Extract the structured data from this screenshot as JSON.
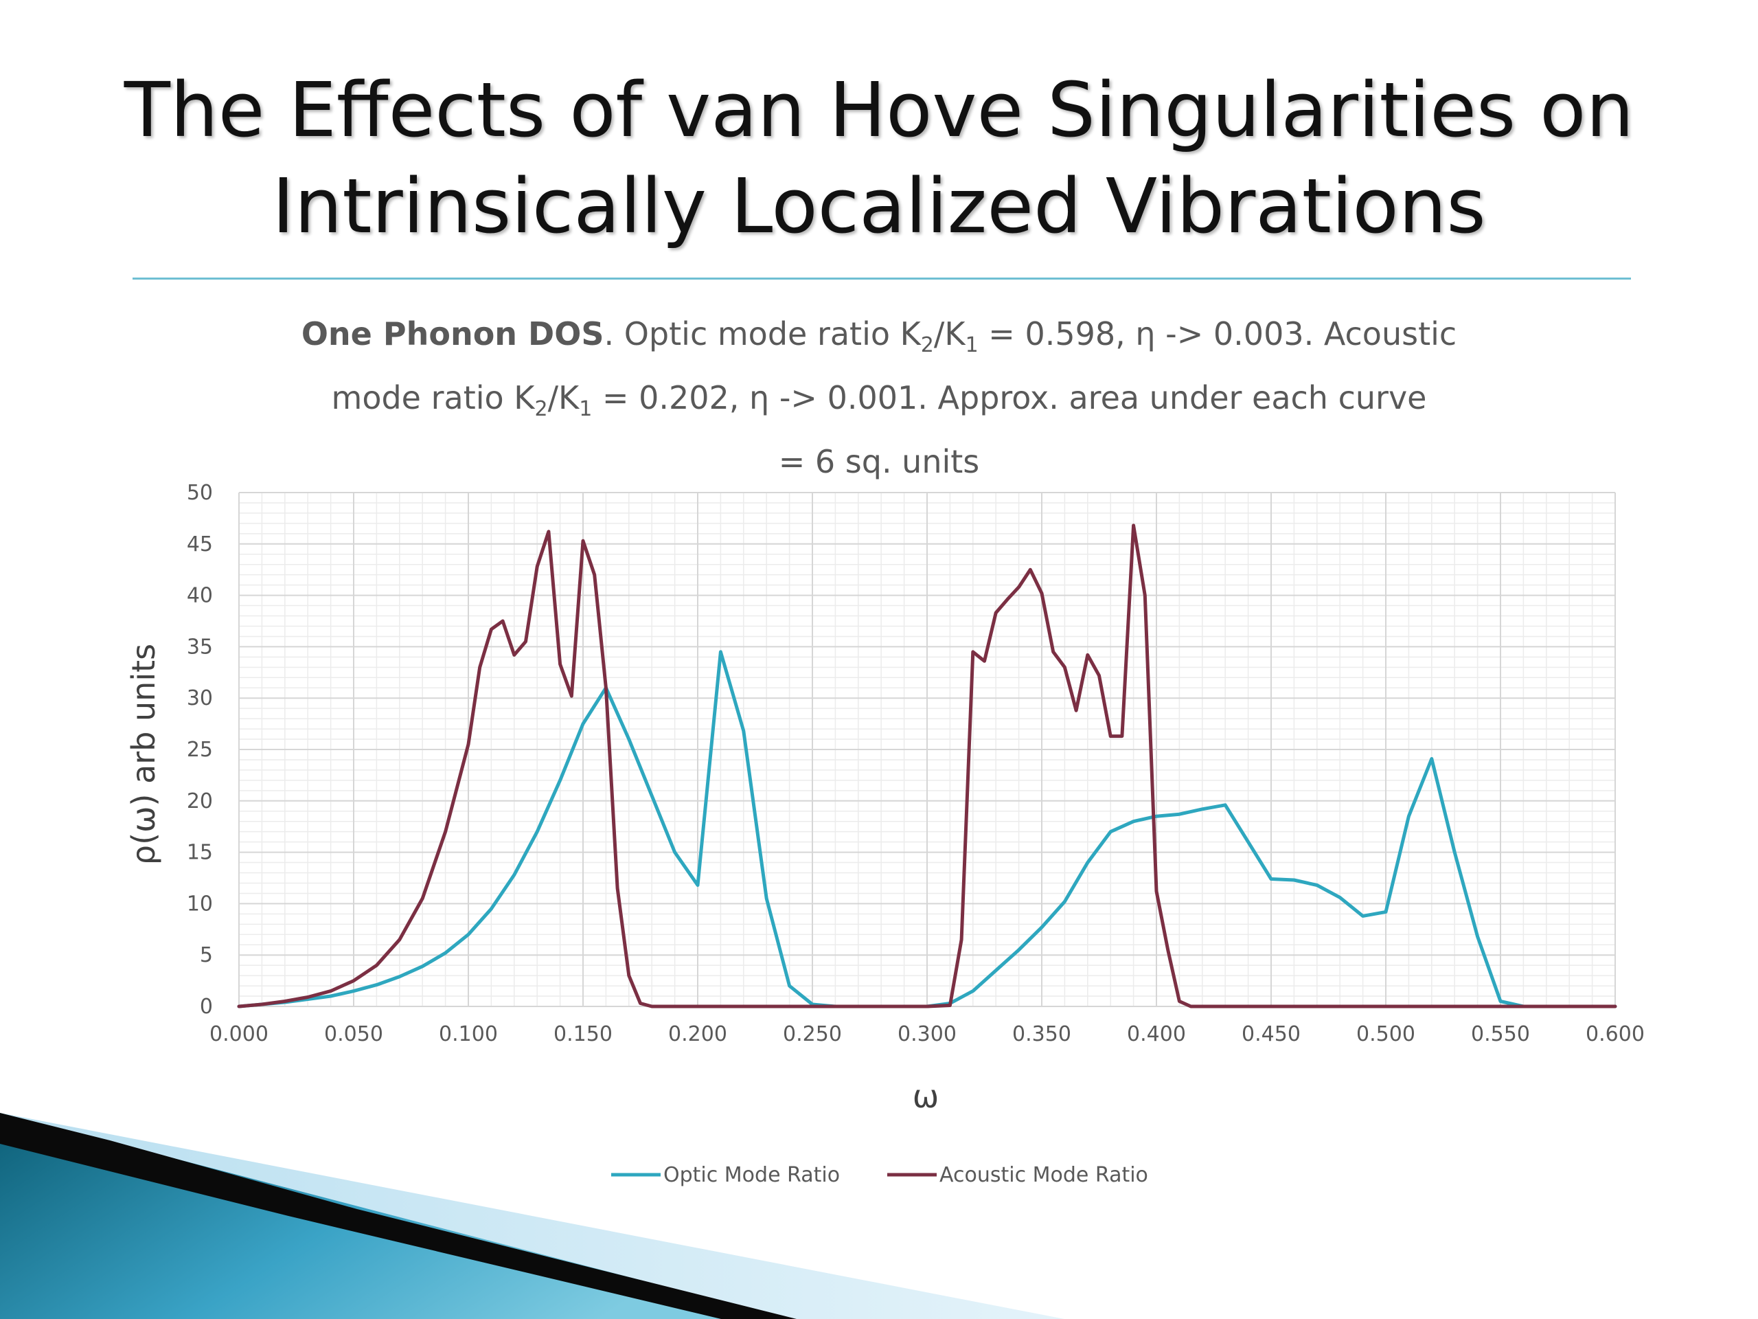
{
  "slide": {
    "title_line1": "The Effects of van Hove Singularities on",
    "title_line2": "Intrinsically Localized Vibrations"
  },
  "caption": {
    "bold": "One Phonon DOS",
    "line1_a": ". Optic mode ratio K",
    "line1_b": "/K",
    "line1_c": " = 0.598, η -> 0.003. Acoustic",
    "line2_a": "mode ratio K",
    "line2_b": "/K",
    "line2_c": " = 0.202, η -> 0.001. Approx. area under each curve",
    "line3": "= 6 sq. units",
    "sub2": "2",
    "sub1": "1"
  },
  "colors": {
    "optic": "#2ea7bf",
    "acoustic": "#7b2f43",
    "grid_major": "#d6d6d6",
    "grid_minor": "#ececec",
    "rule": "#6fbfd3"
  },
  "chart_data": {
    "type": "line",
    "xlabel": "ω",
    "ylabel": "ρ(ω) arb units",
    "xlim": [
      0,
      0.6
    ],
    "ylim": [
      0,
      50
    ],
    "x_ticks": [
      "0.000",
      "0.050",
      "0.100",
      "0.150",
      "0.200",
      "0.250",
      "0.300",
      "0.350",
      "0.400",
      "0.450",
      "0.500",
      "0.550",
      "0.600"
    ],
    "y_ticks": [
      "0",
      "5",
      "10",
      "15",
      "20",
      "25",
      "30",
      "35",
      "40",
      "45",
      "50"
    ],
    "grid": true,
    "legend_position": "bottom",
    "series": [
      {
        "name": "Optic Mode Ratio",
        "color": "#2ea7bf",
        "points": [
          [
            0.0,
            0
          ],
          [
            0.01,
            0.2
          ],
          [
            0.02,
            0.4
          ],
          [
            0.03,
            0.7
          ],
          [
            0.04,
            1.0
          ],
          [
            0.05,
            1.5
          ],
          [
            0.06,
            2.1
          ],
          [
            0.07,
            2.9
          ],
          [
            0.08,
            3.9
          ],
          [
            0.09,
            5.2
          ],
          [
            0.1,
            7.0
          ],
          [
            0.11,
            9.5
          ],
          [
            0.12,
            12.8
          ],
          [
            0.13,
            17.0
          ],
          [
            0.14,
            22.0
          ],
          [
            0.15,
            27.5
          ],
          [
            0.16,
            31.0
          ],
          [
            0.17,
            26.0
          ],
          [
            0.18,
            20.5
          ],
          [
            0.19,
            15.0
          ],
          [
            0.2,
            11.8
          ],
          [
            0.21,
            34.5
          ],
          [
            0.22,
            26.8
          ],
          [
            0.23,
            10.5
          ],
          [
            0.24,
            2.0
          ],
          [
            0.25,
            0.2
          ],
          [
            0.26,
            0
          ],
          [
            0.27,
            0
          ],
          [
            0.28,
            0
          ],
          [
            0.29,
            0
          ],
          [
            0.3,
            0
          ],
          [
            0.31,
            0.3
          ],
          [
            0.32,
            1.5
          ],
          [
            0.33,
            3.5
          ],
          [
            0.34,
            5.5
          ],
          [
            0.35,
            7.7
          ],
          [
            0.36,
            10.2
          ],
          [
            0.37,
            14.0
          ],
          [
            0.38,
            17.0
          ],
          [
            0.39,
            18.0
          ],
          [
            0.4,
            18.5
          ],
          [
            0.41,
            18.7
          ],
          [
            0.42,
            19.2
          ],
          [
            0.43,
            19.6
          ],
          [
            0.44,
            16.0
          ],
          [
            0.45,
            12.4
          ],
          [
            0.46,
            12.3
          ],
          [
            0.47,
            11.8
          ],
          [
            0.48,
            10.6
          ],
          [
            0.49,
            8.8
          ],
          [
            0.5,
            9.2
          ],
          [
            0.51,
            18.5
          ],
          [
            0.52,
            24.1
          ],
          [
            0.53,
            15.0
          ],
          [
            0.54,
            6.8
          ],
          [
            0.55,
            0.5
          ],
          [
            0.56,
            0
          ],
          [
            0.57,
            0
          ],
          [
            0.58,
            0
          ],
          [
            0.59,
            0
          ],
          [
            0.6,
            0
          ]
        ]
      },
      {
        "name": "Acoustic Mode Ratio",
        "color": "#7b2f43",
        "points": [
          [
            0.0,
            0
          ],
          [
            0.01,
            0.2
          ],
          [
            0.02,
            0.5
          ],
          [
            0.03,
            0.9
          ],
          [
            0.04,
            1.5
          ],
          [
            0.05,
            2.5
          ],
          [
            0.06,
            4.0
          ],
          [
            0.07,
            6.5
          ],
          [
            0.08,
            10.5
          ],
          [
            0.09,
            17.0
          ],
          [
            0.1,
            25.5
          ],
          [
            0.105,
            33.0
          ],
          [
            0.11,
            36.7
          ],
          [
            0.115,
            37.5
          ],
          [
            0.12,
            34.2
          ],
          [
            0.125,
            35.5
          ],
          [
            0.13,
            42.8
          ],
          [
            0.135,
            46.2
          ],
          [
            0.14,
            33.3
          ],
          [
            0.145,
            30.2
          ],
          [
            0.15,
            45.3
          ],
          [
            0.155,
            42.0
          ],
          [
            0.16,
            31.0
          ],
          [
            0.165,
            11.5
          ],
          [
            0.17,
            3.0
          ],
          [
            0.175,
            0.3
          ],
          [
            0.18,
            0
          ],
          [
            0.2,
            0
          ],
          [
            0.25,
            0
          ],
          [
            0.3,
            0
          ],
          [
            0.31,
            0.1
          ],
          [
            0.315,
            6.5
          ],
          [
            0.32,
            34.5
          ],
          [
            0.325,
            33.6
          ],
          [
            0.33,
            38.3
          ],
          [
            0.335,
            39.6
          ],
          [
            0.34,
            40.8
          ],
          [
            0.345,
            42.5
          ],
          [
            0.35,
            40.2
          ],
          [
            0.355,
            34.5
          ],
          [
            0.36,
            33.0
          ],
          [
            0.365,
            28.8
          ],
          [
            0.37,
            34.2
          ],
          [
            0.375,
            32.2
          ],
          [
            0.38,
            26.3
          ],
          [
            0.385,
            26.3
          ],
          [
            0.39,
            46.8
          ],
          [
            0.395,
            40.0
          ],
          [
            0.4,
            11.2
          ],
          [
            0.405,
            5.5
          ],
          [
            0.41,
            0.5
          ],
          [
            0.415,
            0
          ],
          [
            0.45,
            0
          ],
          [
            0.5,
            0
          ],
          [
            0.55,
            0
          ],
          [
            0.6,
            0
          ]
        ]
      }
    ]
  }
}
